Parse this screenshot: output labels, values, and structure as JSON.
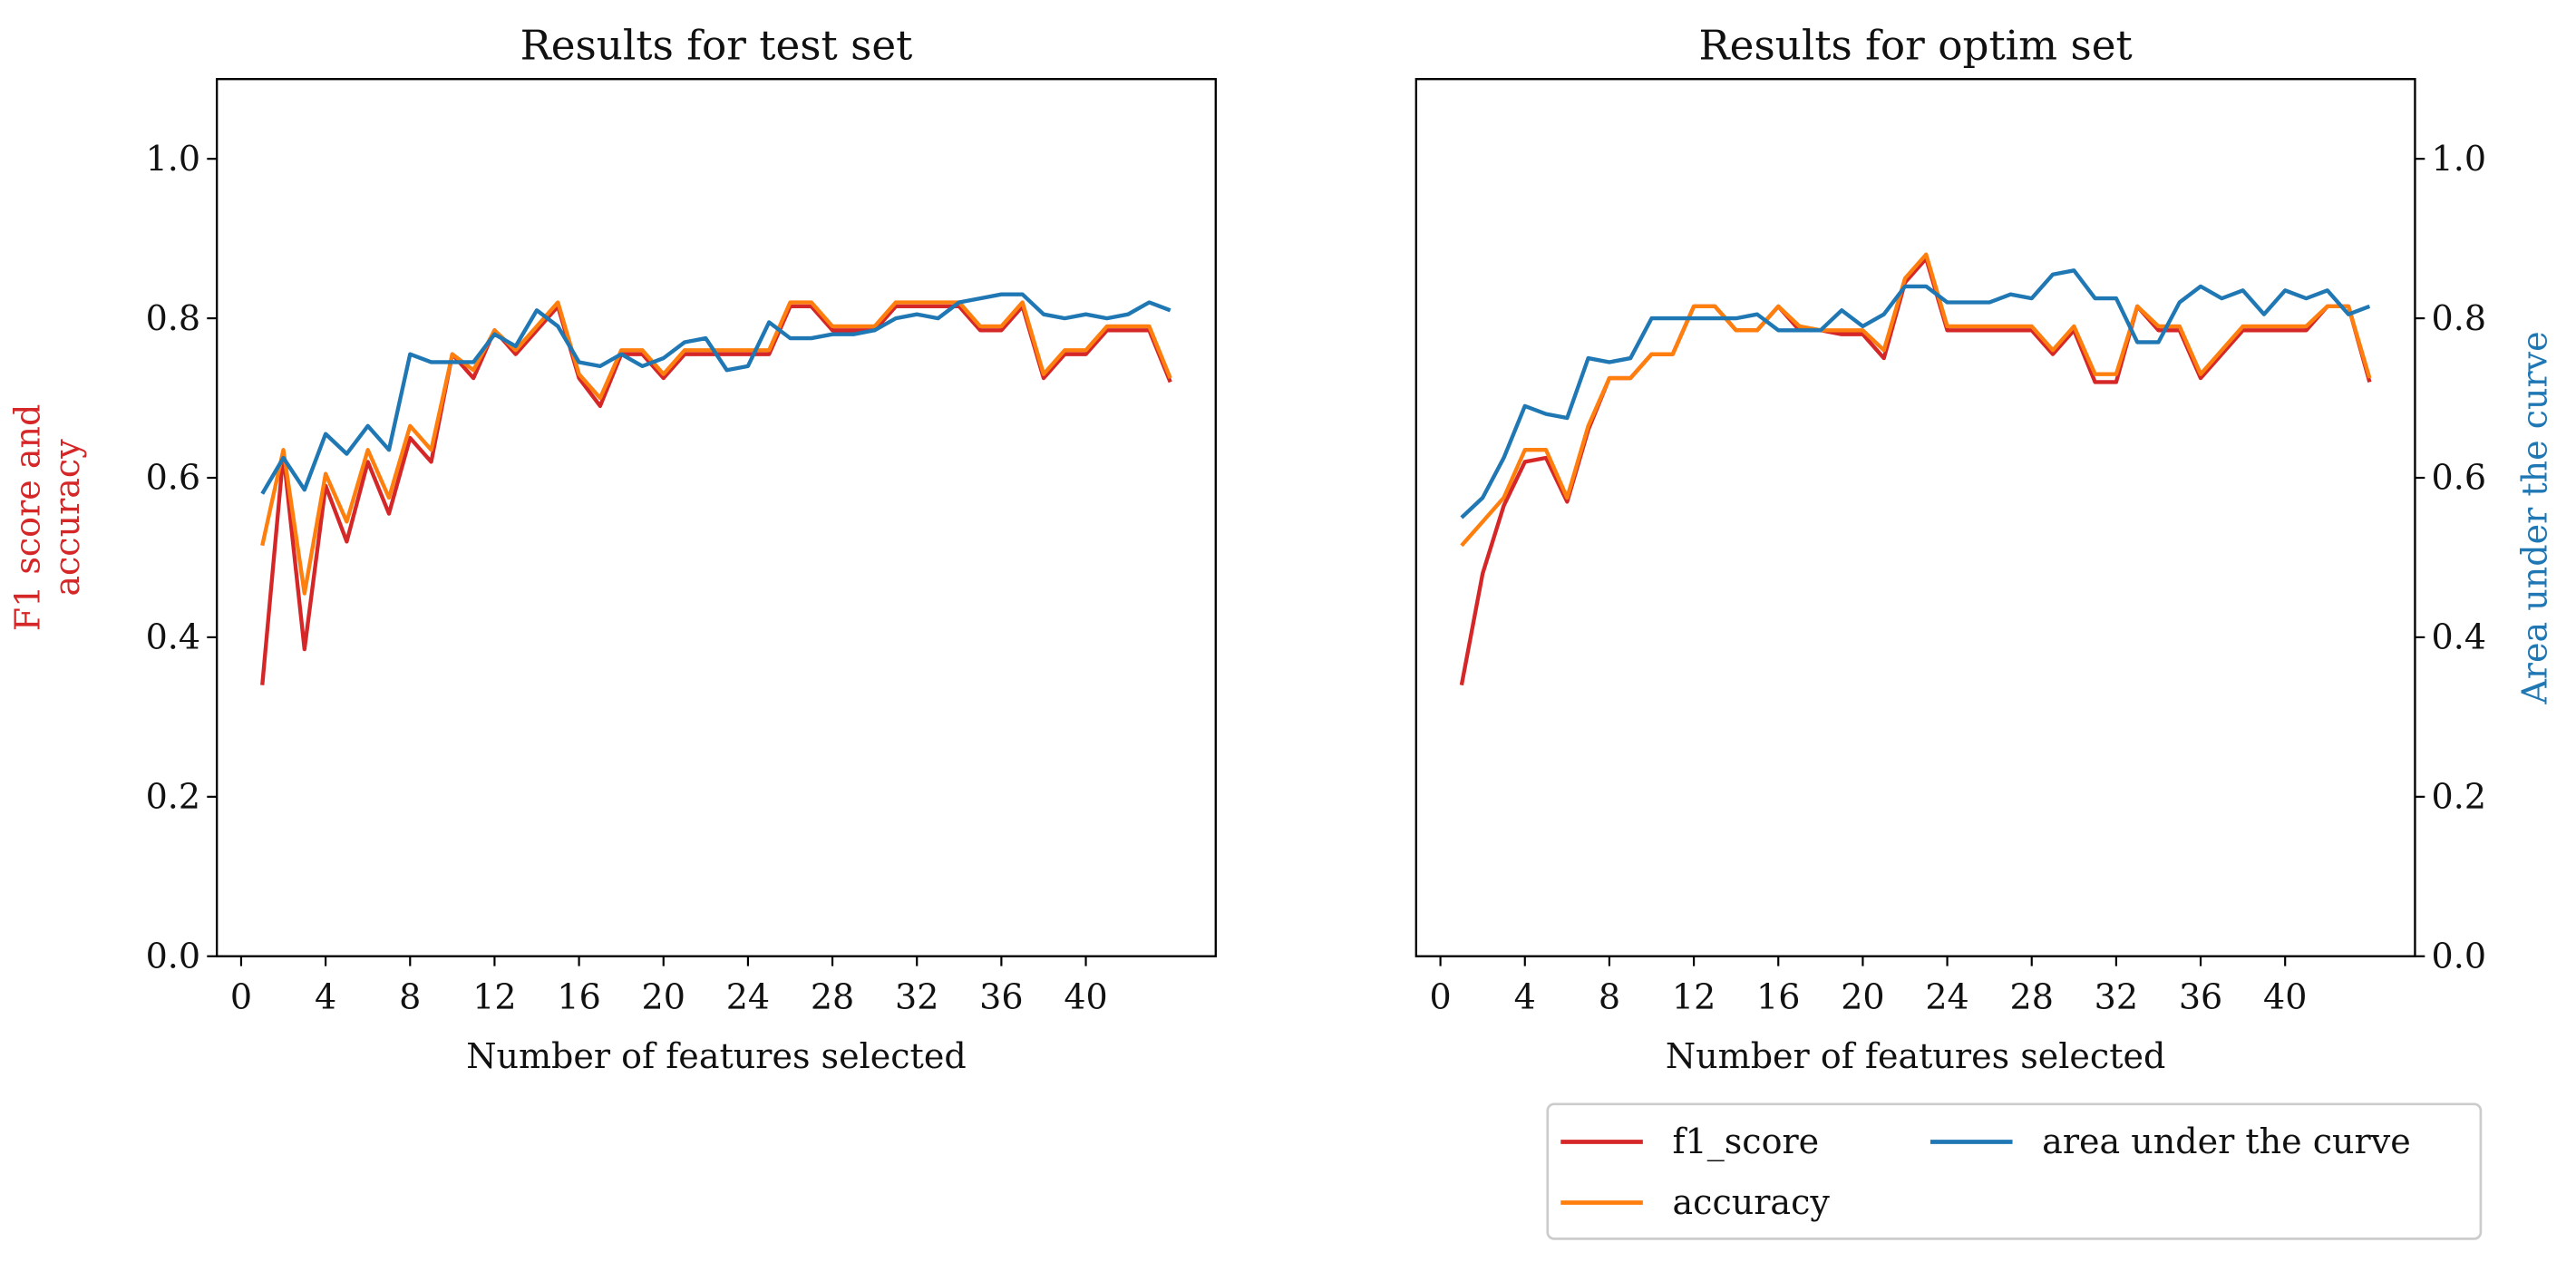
{
  "chart_data": [
    {
      "type": "line",
      "title": "Results for test set",
      "xlabel": "Number of features selected",
      "ylabel": [
        "F1 score and",
        "accuracy"
      ],
      "ylabel_color": "#d62728",
      "yaxis_side": "left",
      "x": [
        1,
        2,
        3,
        4,
        5,
        6,
        7,
        8,
        9,
        10,
        11,
        12,
        13,
        14,
        15,
        16,
        17,
        18,
        19,
        20,
        21,
        22,
        23,
        24,
        25,
        26,
        27,
        28,
        29,
        30,
        31,
        32,
        33,
        34,
        35,
        36,
        37,
        38,
        39,
        40,
        41,
        42,
        43,
        44
      ],
      "xlim": [
        -1.15,
        46.15
      ],
      "xticks": [
        0,
        4,
        8,
        12,
        16,
        20,
        24,
        28,
        32,
        36,
        40
      ],
      "ylim": [
        0,
        1.1
      ],
      "yticks": [
        {
          "value": 0,
          "label": "0.0"
        },
        0.2,
        0.4,
        0.6,
        0.8,
        {
          "value": 1,
          "label": "1.0"
        }
      ],
      "series": [
        {
          "name": "f1_score",
          "color": "#d62728",
          "values": [
            0.34,
            0.63,
            0.385,
            0.59,
            0.52,
            0.62,
            0.555,
            0.65,
            0.62,
            0.755,
            0.725,
            0.785,
            0.755,
            0.785,
            0.815,
            0.725,
            0.69,
            0.755,
            0.755,
            0.725,
            0.755,
            0.755,
            0.755,
            0.755,
            0.755,
            0.815,
            0.815,
            0.785,
            0.785,
            0.785,
            0.815,
            0.815,
            0.815,
            0.815,
            0.785,
            0.785,
            0.815,
            0.725,
            0.755,
            0.755,
            0.785,
            0.785,
            0.785,
            0.72
          ]
        },
        {
          "name": "accuracy",
          "color": "#ff7f0e",
          "values": [
            0.515,
            0.635,
            0.455,
            0.605,
            0.545,
            0.635,
            0.575,
            0.665,
            0.635,
            0.755,
            0.735,
            0.785,
            0.76,
            0.79,
            0.82,
            0.73,
            0.7,
            0.76,
            0.76,
            0.73,
            0.76,
            0.76,
            0.76,
            0.76,
            0.76,
            0.82,
            0.82,
            0.79,
            0.79,
            0.79,
            0.82,
            0.82,
            0.82,
            0.82,
            0.79,
            0.79,
            0.82,
            0.73,
            0.76,
            0.76,
            0.79,
            0.79,
            0.79,
            0.725
          ]
        },
        {
          "name": "area under the curve",
          "color": "#1f77b4",
          "values": [
            0.58,
            0.625,
            0.585,
            0.655,
            0.63,
            0.665,
            0.635,
            0.755,
            0.745,
            0.745,
            0.745,
            0.78,
            0.765,
            0.81,
            0.79,
            0.745,
            0.74,
            0.755,
            0.74,
            0.75,
            0.77,
            0.775,
            0.735,
            0.74,
            0.795,
            0.775,
            0.775,
            0.78,
            0.78,
            0.785,
            0.8,
            0.805,
            0.8,
            0.82,
            0.825,
            0.83,
            0.83,
            0.805,
            0.8,
            0.805,
            0.8,
            0.805,
            0.82,
            0.81
          ]
        }
      ]
    },
    {
      "type": "line",
      "title": "Results for optim set",
      "xlabel": "Number of features selected",
      "ylabel": [
        "Area under the curve"
      ],
      "ylabel_color": "#1f77b4",
      "yaxis_side": "right",
      "x": [
        1,
        2,
        3,
        4,
        5,
        6,
        7,
        8,
        9,
        10,
        11,
        12,
        13,
        14,
        15,
        16,
        17,
        18,
        19,
        20,
        21,
        22,
        23,
        24,
        25,
        26,
        27,
        28,
        29,
        30,
        31,
        32,
        33,
        34,
        35,
        36,
        37,
        38,
        39,
        40,
        41,
        42,
        43,
        44
      ],
      "xlim": [
        -1.15,
        46.15
      ],
      "xticks": [
        0,
        4,
        8,
        12,
        16,
        20,
        24,
        28,
        32,
        36,
        40
      ],
      "ylim": [
        0,
        1.1
      ],
      "yticks": [
        {
          "value": 0,
          "label": "0.0"
        },
        0.2,
        0.4,
        0.6,
        0.8,
        {
          "value": 1,
          "label": "1.0"
        }
      ],
      "series": [
        {
          "name": "f1_score",
          "color": "#d62728",
          "values": [
            0.34,
            0.48,
            0.565,
            0.62,
            0.625,
            0.57,
            0.66,
            0.725,
            0.725,
            0.755,
            0.755,
            0.815,
            0.815,
            0.785,
            0.785,
            0.815,
            0.785,
            0.785,
            0.78,
            0.78,
            0.75,
            0.845,
            0.875,
            0.785,
            0.785,
            0.785,
            0.785,
            0.785,
            0.755,
            0.785,
            0.72,
            0.72,
            0.815,
            0.785,
            0.785,
            0.725,
            0.755,
            0.785,
            0.785,
            0.785,
            0.785,
            0.815,
            0.815,
            0.72
          ]
        },
        {
          "name": "accuracy",
          "color": "#ff7f0e",
          "values": [
            0.515,
            0.545,
            0.575,
            0.635,
            0.635,
            0.575,
            0.665,
            0.725,
            0.725,
            0.755,
            0.755,
            0.815,
            0.815,
            0.785,
            0.785,
            0.815,
            0.79,
            0.785,
            0.785,
            0.785,
            0.76,
            0.85,
            0.88,
            0.79,
            0.79,
            0.79,
            0.79,
            0.79,
            0.76,
            0.79,
            0.73,
            0.73,
            0.815,
            0.79,
            0.79,
            0.73,
            0.76,
            0.79,
            0.79,
            0.79,
            0.79,
            0.815,
            0.815,
            0.725
          ]
        },
        {
          "name": "area under the curve",
          "color": "#1f77b4",
          "values": [
            0.55,
            0.575,
            0.625,
            0.69,
            0.68,
            0.675,
            0.75,
            0.745,
            0.75,
            0.8,
            0.8,
            0.8,
            0.8,
            0.8,
            0.805,
            0.785,
            0.785,
            0.785,
            0.81,
            0.79,
            0.805,
            0.84,
            0.84,
            0.82,
            0.82,
            0.82,
            0.83,
            0.825,
            0.855,
            0.86,
            0.825,
            0.825,
            0.77,
            0.77,
            0.82,
            0.84,
            0.825,
            0.835,
            0.805,
            0.835,
            0.825,
            0.835,
            0.805,
            0.815
          ]
        }
      ]
    }
  ]
}
